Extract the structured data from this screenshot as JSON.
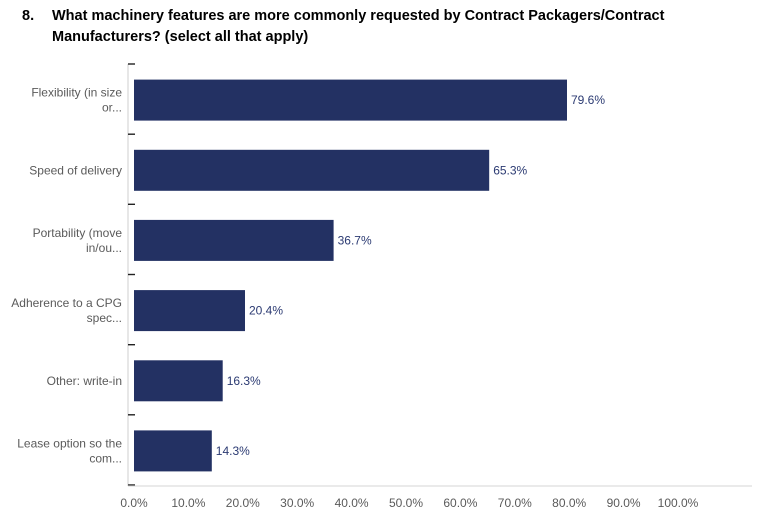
{
  "question": {
    "number": "8.",
    "line1": "What machinery features are more commonly requested by Contract Packagers/Contract",
    "line2": "Manufacturers? (select all that apply)"
  },
  "chart_data": {
    "type": "bar",
    "orientation": "horizontal",
    "categories": [
      [
        "Flexibility (in size",
        "or..."
      ],
      [
        "Speed of delivery"
      ],
      [
        "Portability (move",
        "in/ou..."
      ],
      [
        "Adherence to a CPG",
        "spec..."
      ],
      [
        "Other: write-in"
      ],
      [
        "Lease option so the",
        "com..."
      ]
    ],
    "values": [
      79.6,
      65.3,
      36.7,
      20.4,
      16.3,
      14.3
    ],
    "value_labels": [
      "79.6%",
      "65.3%",
      "36.7%",
      "20.4%",
      "16.3%",
      "14.3%"
    ],
    "xticks": [
      "0.0%",
      "10.0%",
      "20.0%",
      "30.0%",
      "40.0%",
      "50.0%",
      "60.0%",
      "70.0%",
      "80.0%",
      "90.0%",
      "100.0%"
    ],
    "xlim": [
      0,
      100
    ],
    "grid": false,
    "bar_color": "#233163"
  }
}
